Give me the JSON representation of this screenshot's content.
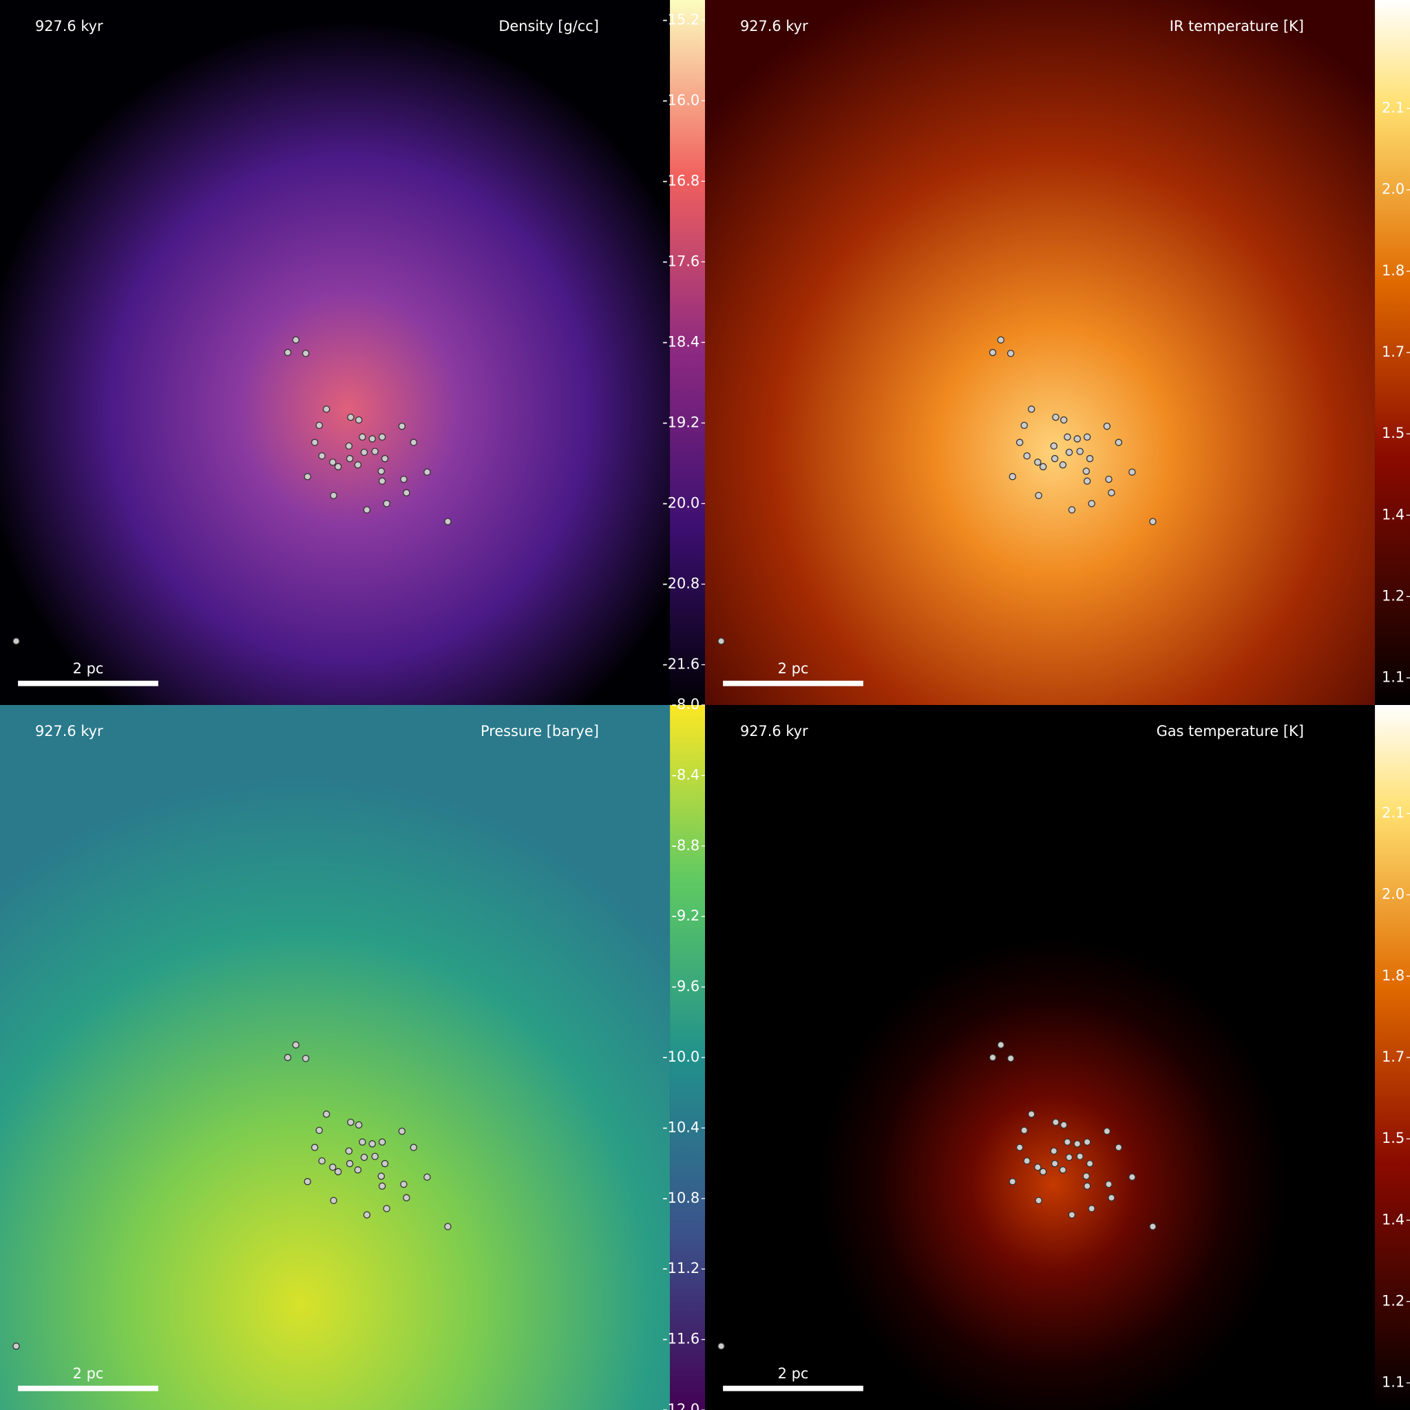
{
  "panels": [
    {
      "time": "927.6 kyr",
      "title": "Density [g/cc]",
      "scale_bar": "2 pc",
      "colormap": "magma",
      "colorbar": {
        "lim": [
          -22,
          -15
        ],
        "ticks": [
          -15.2,
          {
            "value": -16,
            "label": "-16.0"
          },
          -16.8,
          -17.6,
          -18.4,
          -19.2,
          {
            "value": -20,
            "label": "-20.0"
          },
          -20.8,
          -21.6
        ]
      }
    },
    {
      "time": "927.6 kyr",
      "title": "IR temperature [K]",
      "scale_bar": "2 pc",
      "colormap": "afmhot",
      "colorbar": {
        "lim": [
          1.0,
          2.3
        ],
        "ticks": [
          {
            "value": 2.1,
            "label": "2.1"
          },
          {
            "value": 1.95,
            "label": "2.0"
          },
          {
            "value": 1.8,
            "label": "1.8"
          },
          {
            "value": 1.65,
            "label": "1.7"
          },
          {
            "value": 1.5,
            "label": "1.5"
          },
          {
            "value": 1.35,
            "label": "1.4"
          },
          {
            "value": 1.2,
            "label": "1.2"
          },
          {
            "value": 1.05,
            "label": "1.1"
          }
        ]
      }
    },
    {
      "time": "927.6 kyr",
      "title": "Pressure [barye]",
      "scale_bar": "2 pc",
      "colormap": "viridis",
      "colorbar": {
        "lim": [
          -12,
          -8
        ],
        "ticks": [
          {
            "value": -8,
            "label": "-8.0"
          },
          -8.4,
          -8.8,
          -9.2,
          -9.6,
          {
            "value": -10,
            "label": "-10.0"
          },
          -10.4,
          -10.8,
          -11.2,
          -11.6,
          {
            "value": -12,
            "label": "-12.0"
          }
        ]
      }
    },
    {
      "time": "927.6 kyr",
      "title": "Gas temperature [K]",
      "scale_bar": "2 pc",
      "colormap": "afmhot",
      "colorbar": {
        "lim": [
          1.0,
          2.3
        ],
        "ticks": [
          {
            "value": 2.1,
            "label": "2.1"
          },
          {
            "value": 1.95,
            "label": "2.0"
          },
          {
            "value": 1.8,
            "label": "1.8"
          },
          {
            "value": 1.65,
            "label": "1.7"
          },
          {
            "value": 1.5,
            "label": "1.5"
          },
          {
            "value": 1.35,
            "label": "1.4"
          },
          {
            "value": 1.2,
            "label": "1.2"
          },
          {
            "value": 1.05,
            "label": "1.1"
          }
        ]
      }
    }
  ]
}
